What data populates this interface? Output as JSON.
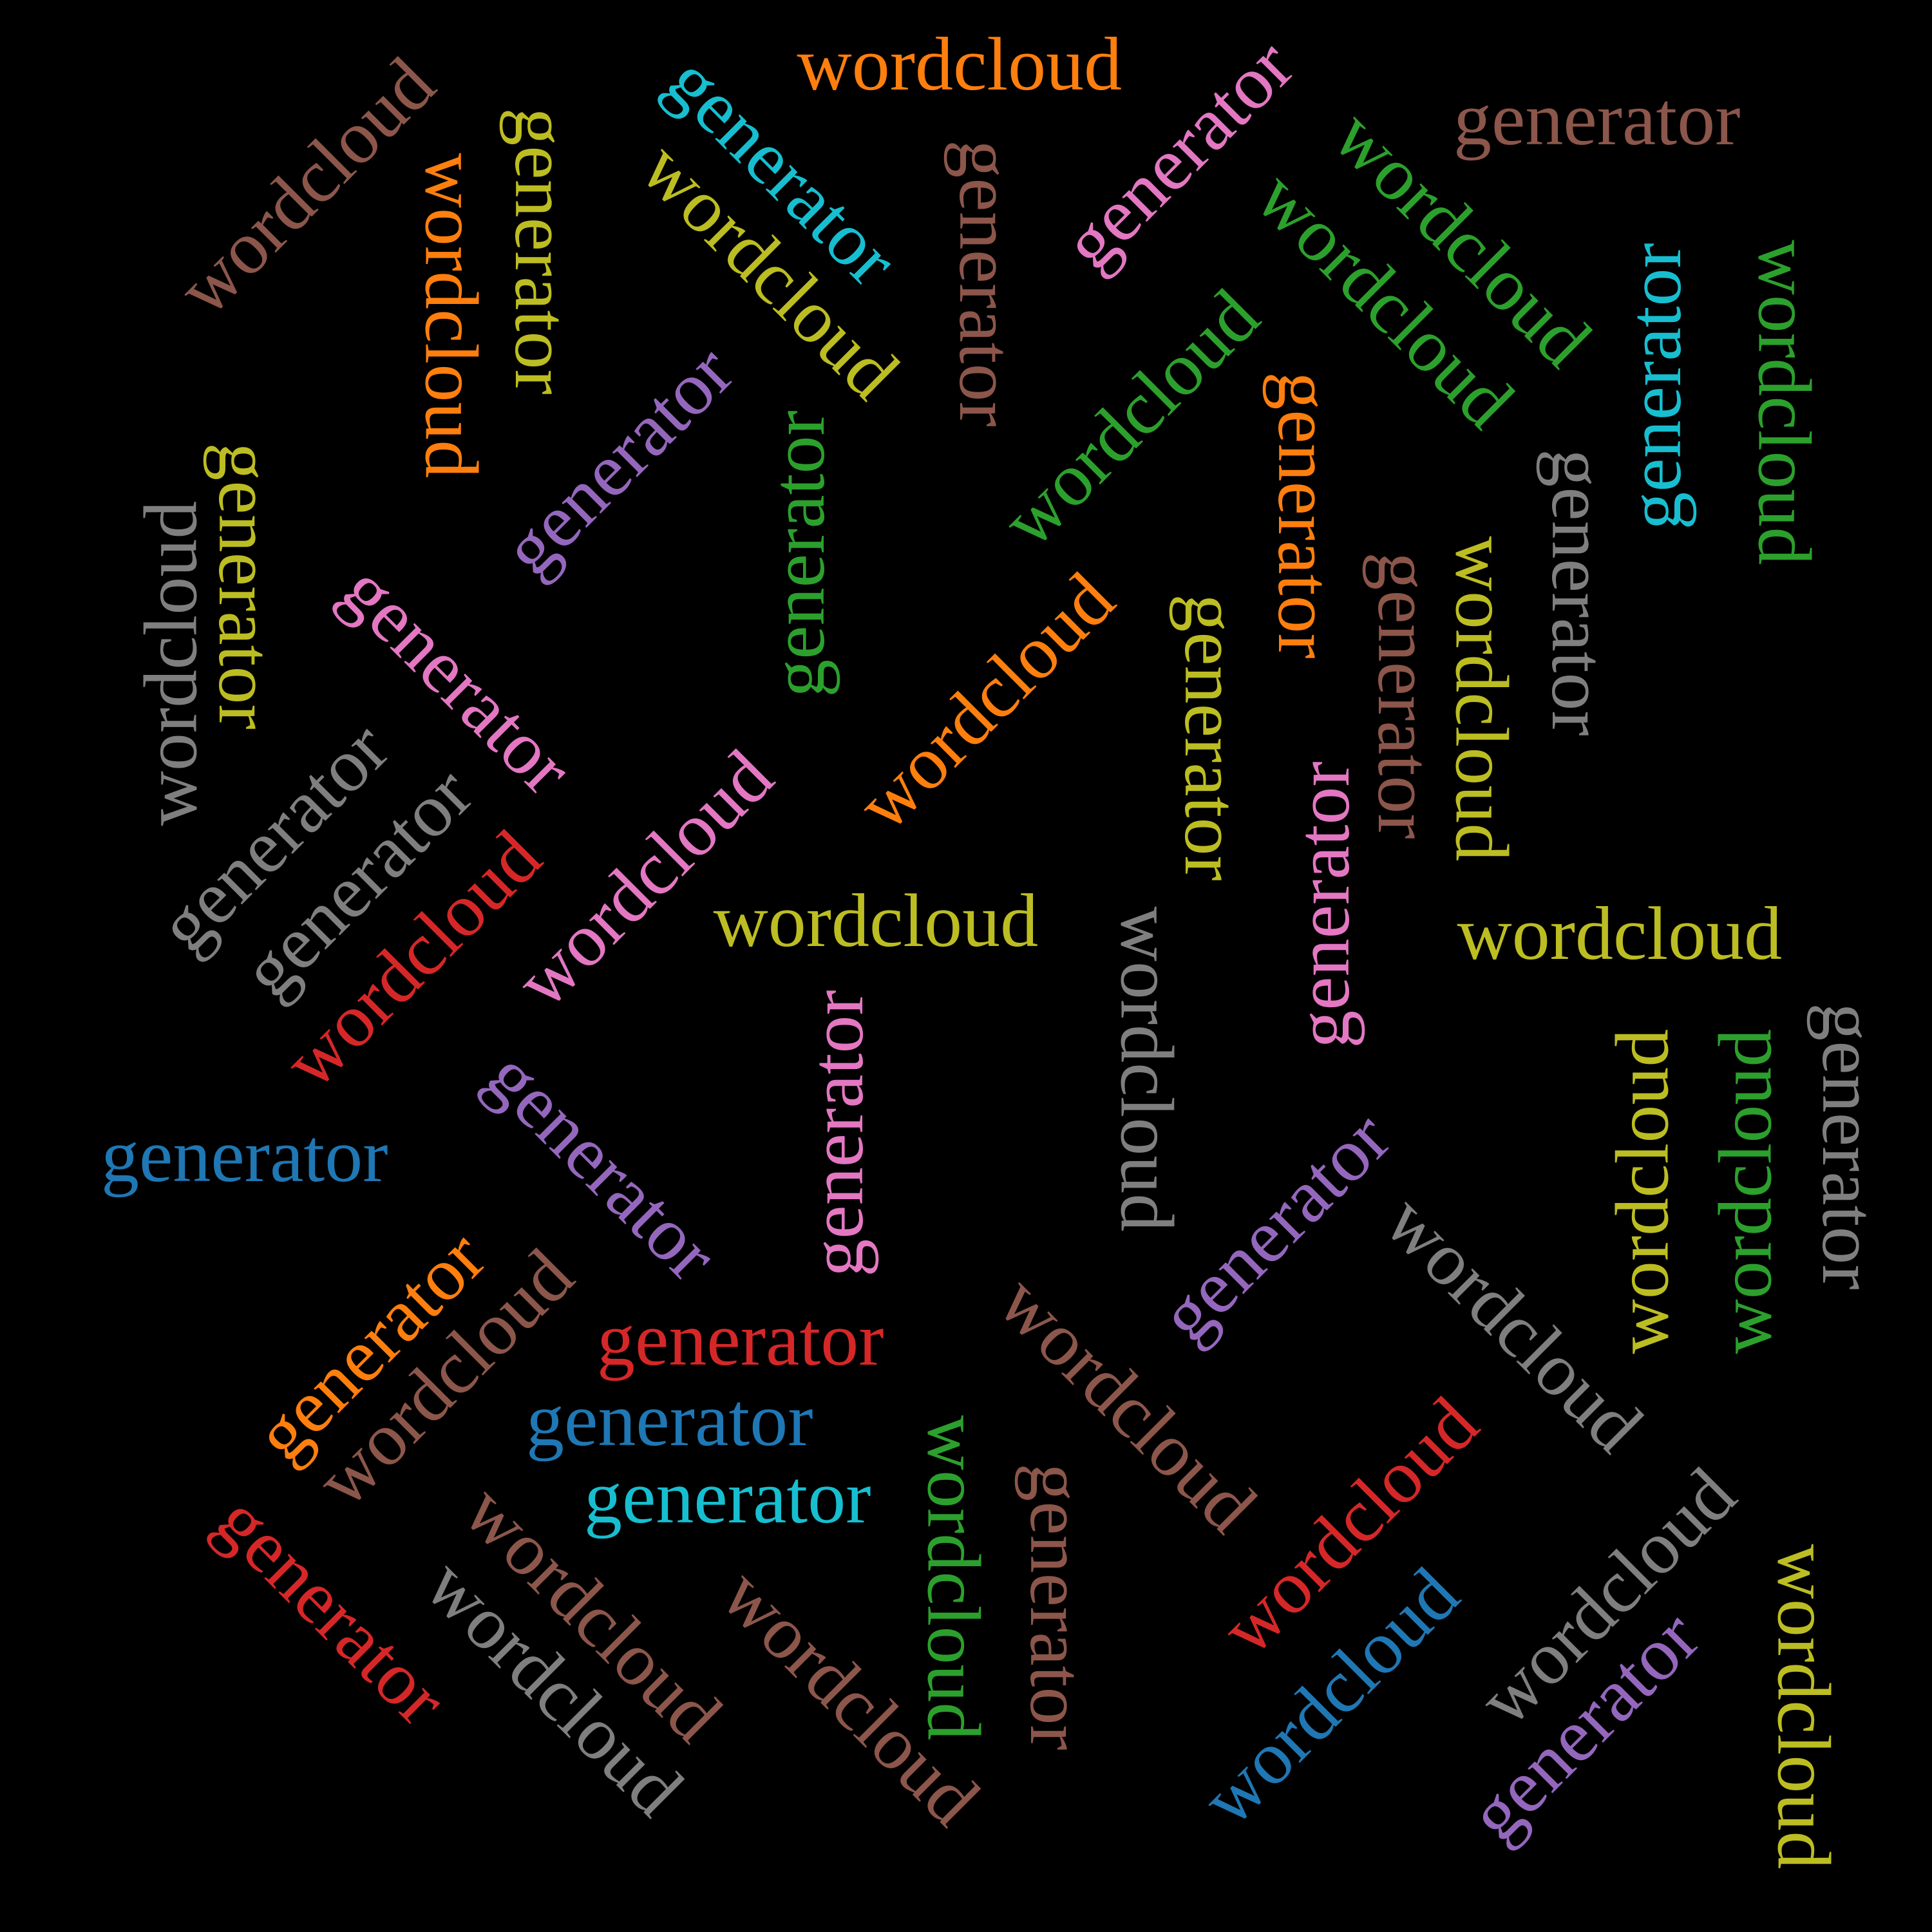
{
  "palette": {
    "blue": "#1f77b4",
    "orange": "#ff7f0e",
    "green": "#2ca02c",
    "red": "#d62728",
    "purple": "#9467bd",
    "brown": "#8c564b",
    "pink": "#e377c2",
    "gray": "#7f7f7f",
    "olive": "#bcbd22",
    "cyan": "#17becf"
  },
  "words": [
    {
      "text": "wordcloud",
      "color": "orange"
    },
    {
      "text": "generator",
      "color": "brown"
    },
    {
      "text": "wordcloud",
      "color": "brown"
    },
    {
      "text": "generator",
      "color": "olive"
    },
    {
      "text": "wordcloud",
      "color": "orange"
    },
    {
      "text": "generator",
      "color": "cyan"
    },
    {
      "text": "wordcloud",
      "color": "olive"
    },
    {
      "text": "generator",
      "color": "brown"
    },
    {
      "text": "generator",
      "color": "pink"
    },
    {
      "text": "wordcloud",
      "color": "green"
    },
    {
      "text": "wordcloud",
      "color": "green"
    },
    {
      "text": "generator",
      "color": "cyan"
    },
    {
      "text": "wordcloud",
      "color": "green"
    },
    {
      "text": "wordcloud",
      "color": "green"
    },
    {
      "text": "generator",
      "color": "purple"
    },
    {
      "text": "generator",
      "color": "green"
    },
    {
      "text": "generator",
      "color": "orange"
    },
    {
      "text": "generator",
      "color": "gray"
    },
    {
      "text": "generator",
      "color": "olive"
    },
    {
      "text": "wordcloud",
      "color": "gray"
    },
    {
      "text": "generator",
      "color": "pink"
    },
    {
      "text": "wordcloud",
      "color": "orange"
    },
    {
      "text": "generator",
      "color": "olive"
    },
    {
      "text": "generator",
      "color": "brown"
    },
    {
      "text": "wordcloud",
      "color": "olive"
    },
    {
      "text": "generator",
      "color": "gray"
    },
    {
      "text": "generator",
      "color": "gray"
    },
    {
      "text": "wordcloud",
      "color": "red"
    },
    {
      "text": "wordcloud",
      "color": "pink"
    },
    {
      "text": "wordcloud",
      "color": "olive"
    },
    {
      "text": "wordcloud",
      "color": "gray"
    },
    {
      "text": "generator",
      "color": "pink"
    },
    {
      "text": "wordcloud",
      "color": "olive"
    },
    {
      "text": "generator",
      "color": "gray"
    },
    {
      "text": "wordcloud",
      "color": "olive"
    },
    {
      "text": "wordcloud",
      "color": "green"
    },
    {
      "text": "generator",
      "color": "blue"
    },
    {
      "text": "generator",
      "color": "purple"
    },
    {
      "text": "generator",
      "color": "pink"
    },
    {
      "text": "generator",
      "color": "purple"
    },
    {
      "text": "generator",
      "color": "orange"
    },
    {
      "text": "wordcloud",
      "color": "brown"
    },
    {
      "text": "generator",
      "color": "red"
    },
    {
      "text": "wordcloud",
      "color": "gray"
    },
    {
      "text": "generator",
      "color": "blue"
    },
    {
      "text": "wordcloud",
      "color": "brown"
    },
    {
      "text": "generator",
      "color": "cyan"
    },
    {
      "text": "wordcloud",
      "color": "green"
    },
    {
      "text": "generator",
      "color": "brown"
    },
    {
      "text": "wordcloud",
      "color": "red"
    },
    {
      "text": "wordcloud",
      "color": "gray"
    },
    {
      "text": "generator",
      "color": "red"
    },
    {
      "text": "wordcloud",
      "color": "brown"
    },
    {
      "text": "wordcloud",
      "color": "gray"
    },
    {
      "text": "wordcloud",
      "color": "brown"
    },
    {
      "text": "wordcloud",
      "color": "blue"
    },
    {
      "text": "generator",
      "color": "purple"
    },
    {
      "text": "wordcloud",
      "color": "olive"
    }
  ]
}
